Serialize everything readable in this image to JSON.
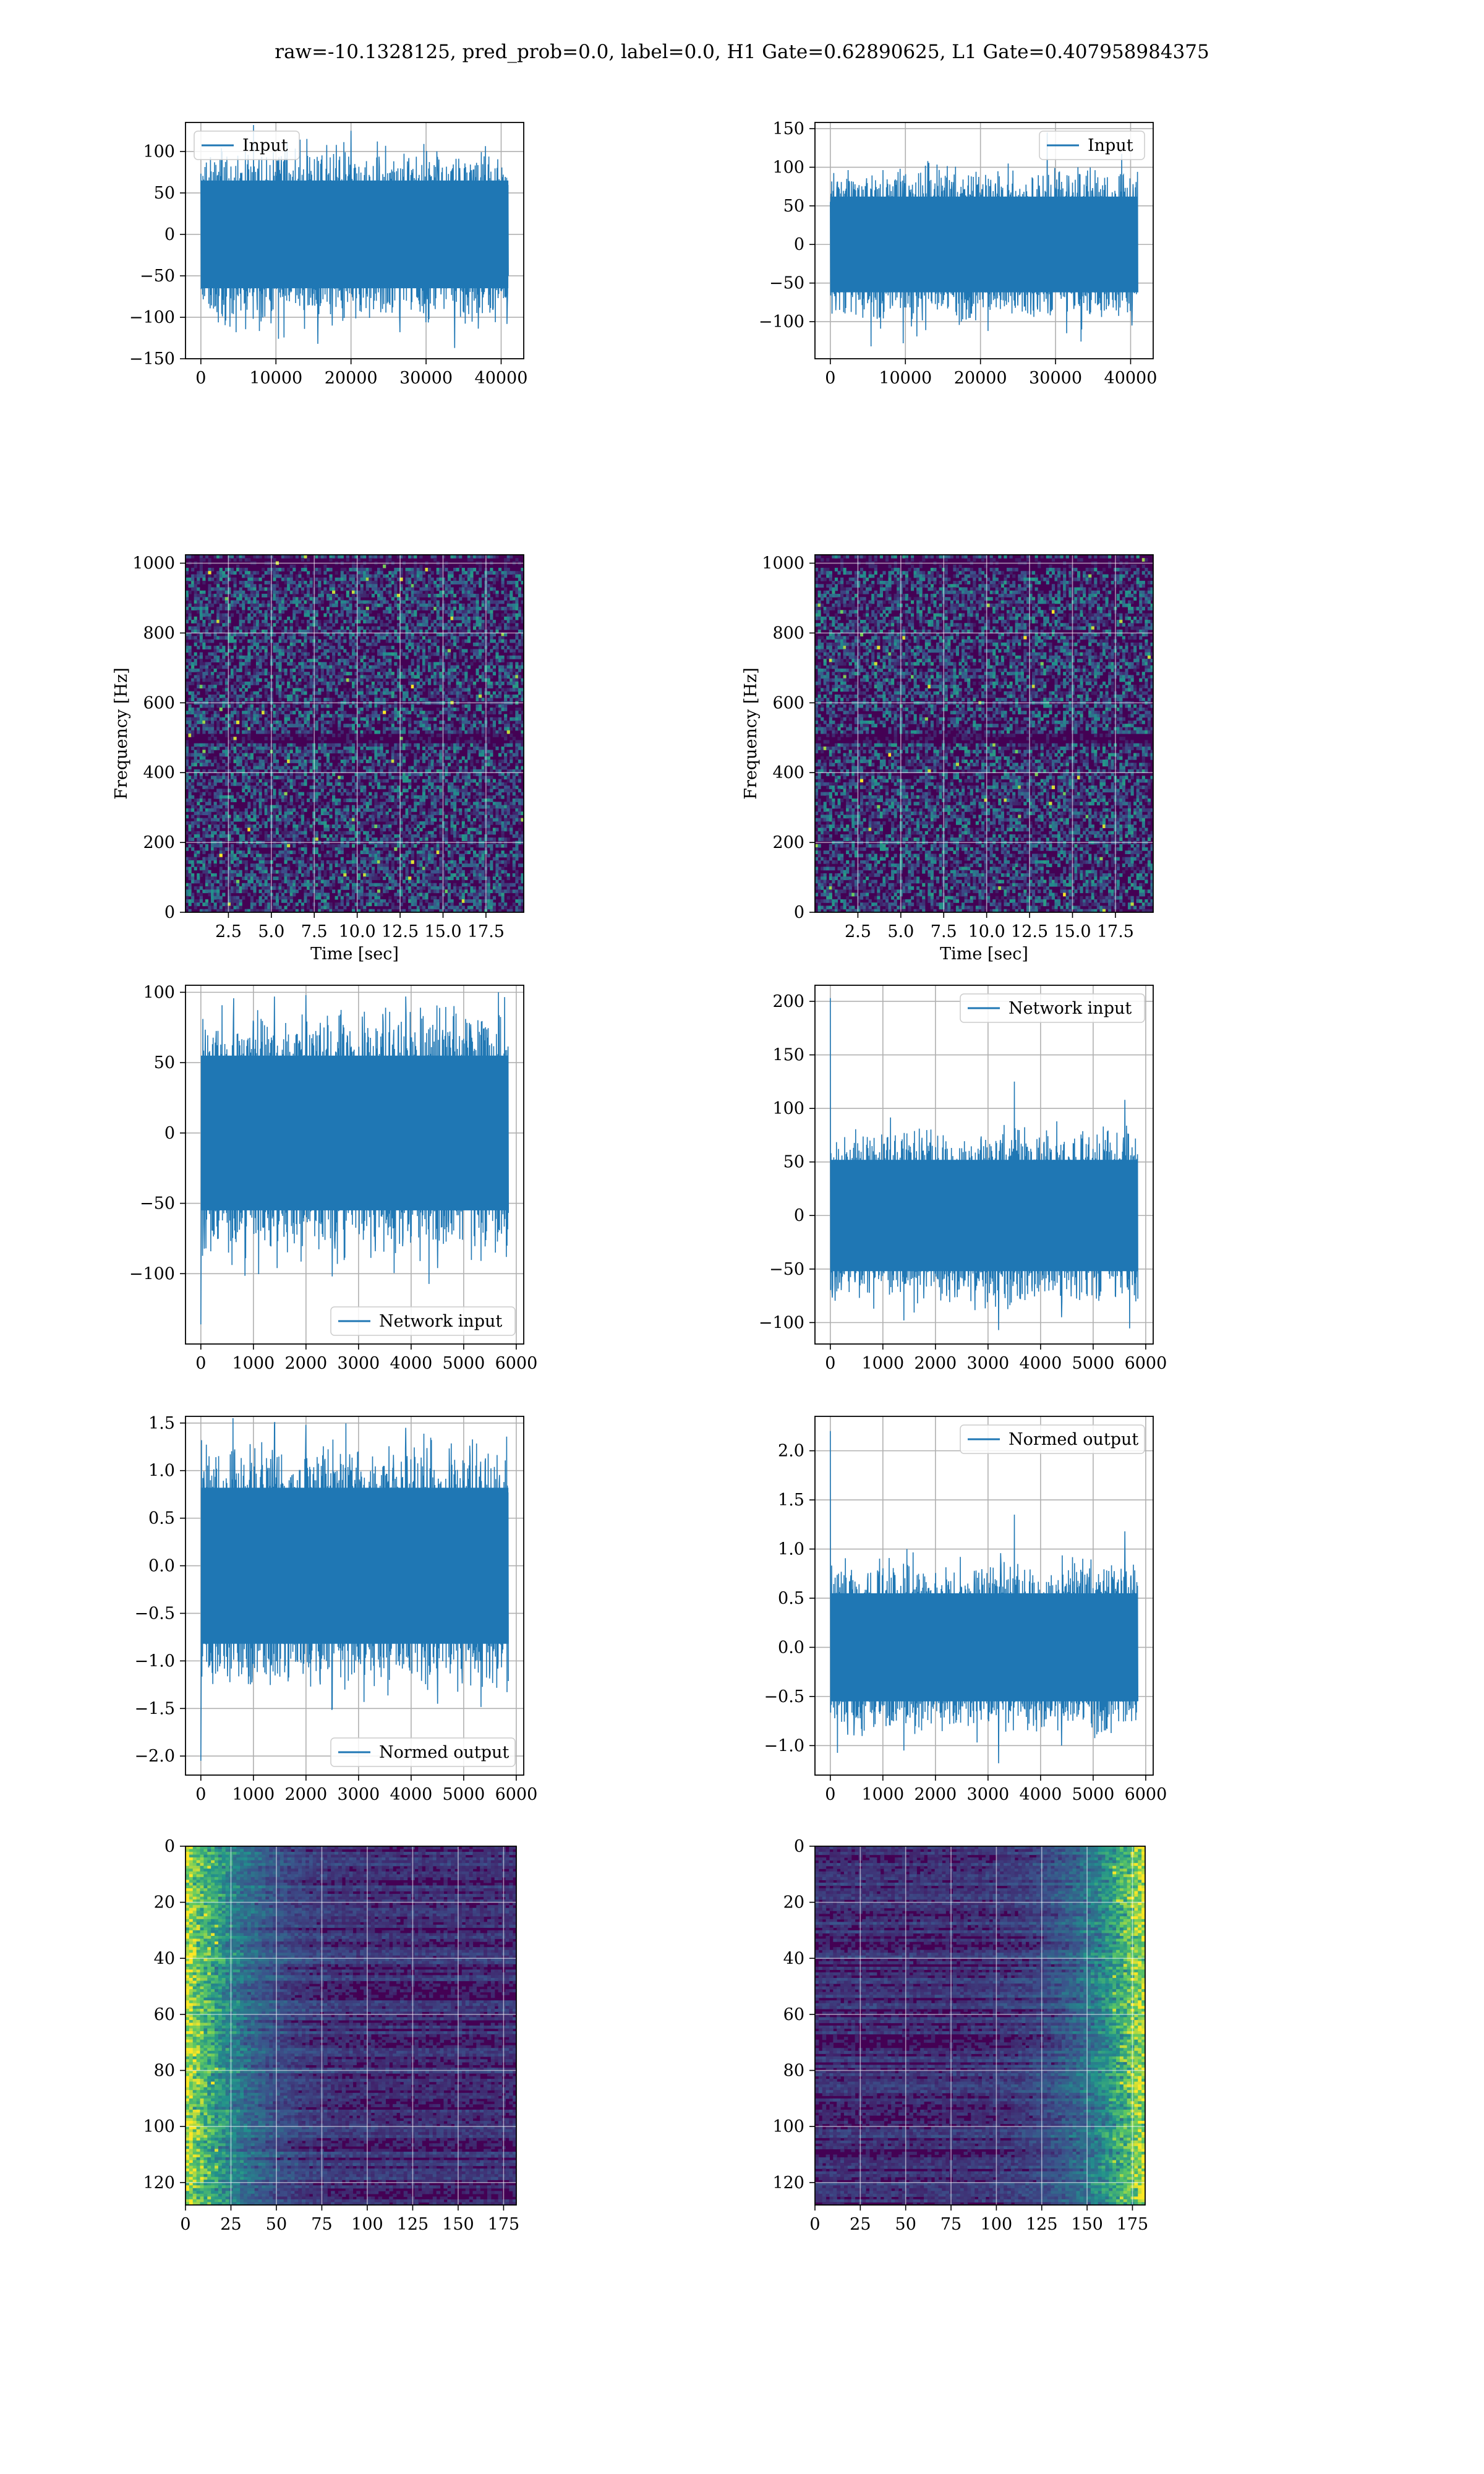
{
  "figure_title": "raw=-10.1328125, pred_prob=0.0, label=0.0, H1 Gate=0.62890625, L1 Gate=0.407958984375",
  "colors": {
    "line": "#1f77b4",
    "grid": "#b0b0b0",
    "spine": "#000000",
    "viridis_dark": "#440154",
    "viridis_mid": "#3b528b",
    "viridis_teal": "#21918c",
    "viridis_green": "#5ec962",
    "viridis_yellow": "#fde725"
  },
  "chart_data": [
    {
      "id": "input-h1",
      "type": "line",
      "series": [
        {
          "name": "Input"
        }
      ],
      "legend": "top-left",
      "x_range": [
        0,
        40960
      ],
      "xlim": [
        -2048,
        43008
      ],
      "ylim": [
        -150,
        135
      ],
      "xticks": [
        0,
        10000,
        20000,
        30000,
        40000
      ],
      "xtick_labels": [
        "0",
        "10000",
        "20000",
        "30000",
        "40000"
      ],
      "yticks": [
        -150,
        -100,
        -50,
        0,
        50,
        100
      ],
      "ytick_labels": [
        "−150",
        "−100",
        "−50",
        "0",
        "50",
        "100"
      ],
      "band": [
        -65,
        65
      ],
      "typical_peak": 95,
      "spikes": [
        [
          4700,
          -118
        ],
        [
          8000,
          -105
        ],
        [
          11500,
          112
        ],
        [
          15600,
          -132
        ],
        [
          17500,
          -110
        ],
        [
          23500,
          112
        ],
        [
          26500,
          -118
        ],
        [
          30000,
          -106
        ],
        [
          33800,
          -137
        ],
        [
          34500,
          80
        ],
        [
          37500,
          -95
        ],
        [
          20000,
          125
        ]
      ],
      "grid": true,
      "xlabel": "",
      "ylabel": ""
    },
    {
      "id": "input-l1",
      "type": "line",
      "series": [
        {
          "name": "Input"
        }
      ],
      "legend": "top-right",
      "x_range": [
        0,
        40960
      ],
      "xlim": [
        -2048,
        43008
      ],
      "ylim": [
        -148,
        158
      ],
      "xticks": [
        0,
        10000,
        20000,
        30000,
        40000
      ],
      "xtick_labels": [
        "0",
        "10000",
        "20000",
        "30000",
        "40000"
      ],
      "yticks": [
        -100,
        -50,
        0,
        50,
        100,
        150
      ],
      "ytick_labels": [
        "−100",
        "−50",
        "0",
        "50",
        "100",
        "150"
      ],
      "band": [
        -62,
        62
      ],
      "typical_peak": 92,
      "spikes": [
        [
          5400,
          -132
        ],
        [
          9700,
          -128
        ],
        [
          28900,
          145
        ],
        [
          31500,
          -115
        ],
        [
          33500,
          -110
        ],
        [
          40200,
          -105
        ],
        [
          13000,
          108
        ],
        [
          21000,
          -112
        ]
      ],
      "grid": true,
      "xlabel": "",
      "ylabel": ""
    },
    {
      "id": "spec-h1",
      "type": "heatmap",
      "xlabel": "Time [sec]",
      "ylabel": "Frequency [Hz]",
      "xlim": [
        0,
        19.7
      ],
      "ylim": [
        0,
        1024
      ],
      "xticks": [
        2.5,
        5.0,
        7.5,
        10.0,
        12.5,
        15.0,
        17.5
      ],
      "xtick_labels": [
        "2.5",
        "5.0",
        "7.5",
        "10.0",
        "12.5",
        "15.0",
        "17.5"
      ],
      "yticks": [
        0,
        200,
        400,
        600,
        800,
        1000
      ],
      "ytick_labels": [
        "0",
        "200",
        "400",
        "600",
        "800",
        "1000"
      ],
      "dark_bands_hz": [
        500,
        1000
      ],
      "colormap": "viridis",
      "grid": true
    },
    {
      "id": "spec-l1",
      "type": "heatmap",
      "xlabel": "Time [sec]",
      "ylabel": "Frequency [Hz]",
      "xlim": [
        0,
        19.7
      ],
      "ylim": [
        0,
        1024
      ],
      "xticks": [
        2.5,
        5.0,
        7.5,
        10.0,
        12.5,
        15.0,
        17.5
      ],
      "xtick_labels": [
        "2.5",
        "5.0",
        "7.5",
        "10.0",
        "12.5",
        "15.0",
        "17.5"
      ],
      "yticks": [
        0,
        200,
        400,
        600,
        800,
        1000
      ],
      "ytick_labels": [
        "0",
        "200",
        "400",
        "600",
        "800",
        "1000"
      ],
      "dark_bands_hz": [
        500,
        1000
      ],
      "colormap": "viridis",
      "grid": true
    },
    {
      "id": "netin-h1",
      "type": "line",
      "series": [
        {
          "name": "Network input"
        }
      ],
      "legend": "bottom-right",
      "x_range": [
        0,
        5850
      ],
      "xlim": [
        -292,
        6142
      ],
      "ylim": [
        -150,
        105
      ],
      "xticks": [
        0,
        1000,
        2000,
        3000,
        4000,
        5000,
        6000
      ],
      "xtick_labels": [
        "0",
        "1000",
        "2000",
        "3000",
        "4000",
        "5000",
        "6000"
      ],
      "yticks": [
        -100,
        -50,
        0,
        50,
        100
      ],
      "ytick_labels": [
        "−100",
        "−50",
        "0",
        "50",
        "100"
      ],
      "band": [
        -55,
        55
      ],
      "typical_peak": 85,
      "spikes": [
        [
          0,
          -136
        ],
        [
          1400,
          97
        ],
        [
          2000,
          98
        ],
        [
          2500,
          -102
        ],
        [
          3900,
          97
        ],
        [
          4500,
          -96
        ]
      ],
      "grid": true,
      "xlabel": "",
      "ylabel": ""
    },
    {
      "id": "netin-l1",
      "type": "line",
      "series": [
        {
          "name": "Network input"
        }
      ],
      "legend": "top-right",
      "x_range": [
        0,
        5850
      ],
      "xlim": [
        -292,
        6142
      ],
      "ylim": [
        -120,
        215
      ],
      "xticks": [
        0,
        1000,
        2000,
        3000,
        4000,
        5000,
        6000
      ],
      "xtick_labels": [
        "0",
        "1000",
        "2000",
        "3000",
        "4000",
        "5000",
        "6000"
      ],
      "yticks": [
        -100,
        -50,
        0,
        50,
        100,
        150,
        200
      ],
      "ytick_labels": [
        "−100",
        "−50",
        "0",
        "50",
        "100",
        "150",
        "200"
      ],
      "band": [
        -52,
        52
      ],
      "typical_peak": 80,
      "spikes": [
        [
          0,
          203
        ],
        [
          3500,
          125
        ],
        [
          3200,
          -107
        ],
        [
          5600,
          108
        ],
        [
          1400,
          -98
        ],
        [
          4400,
          -95
        ]
      ],
      "grid": true,
      "xlabel": "",
      "ylabel": ""
    },
    {
      "id": "normed-h1",
      "type": "line",
      "series": [
        {
          "name": "Normed output"
        }
      ],
      "legend": "bottom-right",
      "x_range": [
        0,
        5850
      ],
      "xlim": [
        -292,
        6142
      ],
      "ylim": [
        -2.2,
        1.57
      ],
      "xticks": [
        0,
        1000,
        2000,
        3000,
        4000,
        5000,
        6000
      ],
      "xtick_labels": [
        "0",
        "1000",
        "2000",
        "3000",
        "4000",
        "5000",
        "6000"
      ],
      "yticks": [
        -2.0,
        -1.5,
        -1.0,
        -0.5,
        0.0,
        0.5,
        1.0,
        1.5
      ],
      "ytick_labels": [
        "−2.0",
        "−1.5",
        "−1.0",
        "−0.5",
        "0.0",
        "0.5",
        "1.0",
        "1.5"
      ],
      "band": [
        -0.82,
        0.82
      ],
      "typical_peak": 1.25,
      "spikes": [
        [
          0,
          -2.05
        ],
        [
          1400,
          1.48
        ],
        [
          2000,
          1.48
        ],
        [
          2500,
          -1.5
        ],
        [
          3900,
          1.45
        ],
        [
          4500,
          -1.45
        ]
      ],
      "grid": true,
      "xlabel": "",
      "ylabel": ""
    },
    {
      "id": "normed-l1",
      "type": "line",
      "series": [
        {
          "name": "Normed output"
        }
      ],
      "legend": "top-right",
      "x_range": [
        0,
        5850
      ],
      "xlim": [
        -292,
        6142
      ],
      "ylim": [
        -1.3,
        2.35
      ],
      "xticks": [
        0,
        1000,
        2000,
        3000,
        4000,
        5000,
        6000
      ],
      "xtick_labels": [
        "0",
        "1000",
        "2000",
        "3000",
        "4000",
        "5000",
        "6000"
      ],
      "yticks": [
        -1.0,
        -0.5,
        0.0,
        0.5,
        1.0,
        1.5,
        2.0
      ],
      "ytick_labels": [
        "−1.0",
        "−0.5",
        "0.0",
        "0.5",
        "1.0",
        "1.5",
        "2.0"
      ],
      "band": [
        -0.55,
        0.55
      ],
      "typical_peak": 0.85,
      "spikes": [
        [
          0,
          2.2
        ],
        [
          3500,
          1.35
        ],
        [
          3200,
          -1.18
        ],
        [
          5600,
          1.18
        ],
        [
          1400,
          -1.05
        ],
        [
          4400,
          -1.0
        ]
      ],
      "grid": true,
      "xlabel": "",
      "ylabel": ""
    },
    {
      "id": "act-h1",
      "type": "heatmap",
      "colormap": "viridis",
      "grid": true,
      "xlim": [
        0,
        182
      ],
      "ylim": [
        0,
        128
      ],
      "y_inverted": true,
      "xticks": [
        0,
        25,
        50,
        75,
        100,
        125,
        150,
        175
      ],
      "xtick_labels": [
        "0",
        "25",
        "50",
        "75",
        "100",
        "125",
        "150",
        "175"
      ],
      "yticks": [
        0,
        20,
        40,
        60,
        80,
        100,
        120
      ],
      "ytick_labels": [
        "0",
        "20",
        "40",
        "60",
        "80",
        "100",
        "120"
      ],
      "bright_edge": "left",
      "xlabel": "",
      "ylabel": ""
    },
    {
      "id": "act-l1",
      "type": "heatmap",
      "colormap": "viridis",
      "grid": true,
      "xlim": [
        0,
        182
      ],
      "ylim": [
        0,
        128
      ],
      "y_inverted": true,
      "xticks": [
        0,
        25,
        50,
        75,
        100,
        125,
        150,
        175
      ],
      "xtick_labels": [
        "0",
        "25",
        "50",
        "75",
        "100",
        "125",
        "150",
        "175"
      ],
      "yticks": [
        0,
        20,
        40,
        60,
        80,
        100,
        120
      ],
      "ytick_labels": [
        "0",
        "20",
        "40",
        "60",
        "80",
        "100",
        "120"
      ],
      "bright_edge": "right",
      "xlabel": "",
      "ylabel": ""
    }
  ]
}
